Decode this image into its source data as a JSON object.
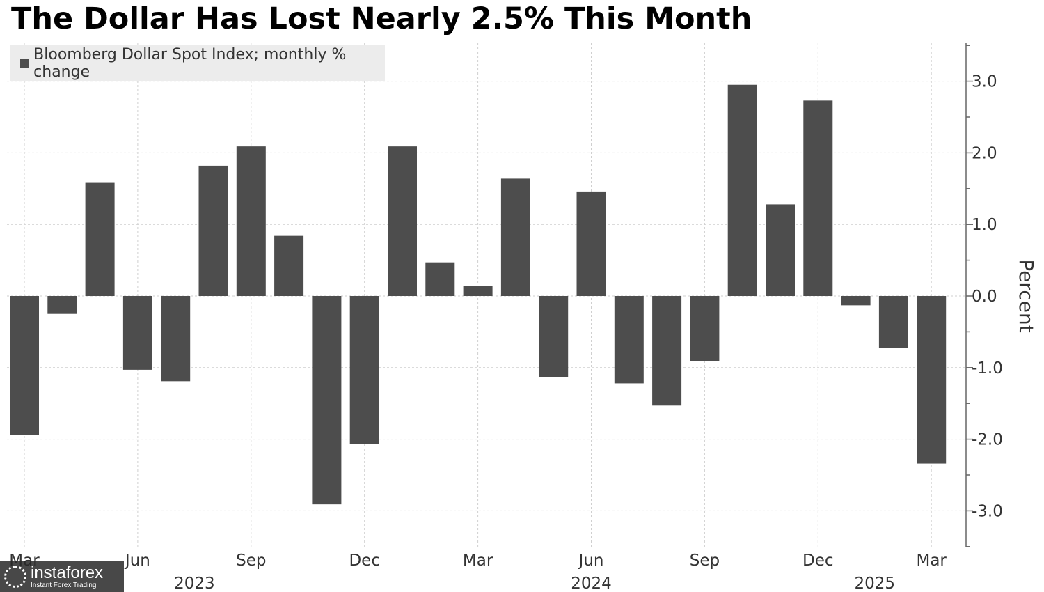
{
  "chart_data": {
    "type": "bar",
    "title": "The Dollar Has Lost Nearly 2.5% This Month",
    "legend": "Bloomberg Dollar Spot Index; monthly % change",
    "legend_placement": "top-left",
    "ylabel": "Percent",
    "ylim": [
      -3.5,
      3.5
    ],
    "yticks": [
      "3.0",
      "2.0",
      "1.0",
      "0.0",
      "-1.0",
      "-2.0",
      "-3.0"
    ],
    "ytick_values": [
      3,
      2,
      1,
      0,
      -1,
      -2,
      -3
    ],
    "categories": [
      "Mar 2023",
      "Apr 2023",
      "May 2023",
      "Jun 2023",
      "Jul 2023",
      "Aug 2023",
      "Sep 2023",
      "Oct 2023",
      "Nov 2023",
      "Dec 2023",
      "Jan 2024",
      "Feb 2024",
      "Mar 2024",
      "Apr 2024",
      "May 2024",
      "Jun 2024",
      "Jul 2024",
      "Aug 2024",
      "Sep 2024",
      "Oct 2024",
      "Nov 2024",
      "Dec 2024",
      "Jan 2025",
      "Feb 2025",
      "Mar 2025"
    ],
    "values": [
      -1.94,
      -0.25,
      1.58,
      -1.03,
      -1.19,
      1.82,
      2.09,
      0.84,
      -2.91,
      -2.07,
      2.09,
      0.47,
      0.14,
      1.64,
      -1.13,
      1.46,
      -1.22,
      -1.53,
      -0.91,
      2.95,
      1.28,
      2.73,
      -0.13,
      -0.72,
      -2.34
    ],
    "xticks": [
      {
        "label": "Mar",
        "index": 0
      },
      {
        "label": "Jun",
        "index": 3
      },
      {
        "label": "Sep",
        "index": 6
      },
      {
        "label": "Dec",
        "index": 9
      },
      {
        "label": "Mar",
        "index": 12
      },
      {
        "label": "Jun",
        "index": 15
      },
      {
        "label": "Sep",
        "index": 18
      },
      {
        "label": "Dec",
        "index": 21
      },
      {
        "label": "Mar",
        "index": 24
      }
    ],
    "year_labels": [
      {
        "label": "2023",
        "index": 4.5
      },
      {
        "label": "2024",
        "index": 15
      },
      {
        "label": "2025",
        "index": 22.5
      }
    ],
    "bar_color": "#4d4d4d",
    "grid": true
  },
  "watermark": {
    "name": "instaforex",
    "tagline": "Instant Forex Trading"
  }
}
